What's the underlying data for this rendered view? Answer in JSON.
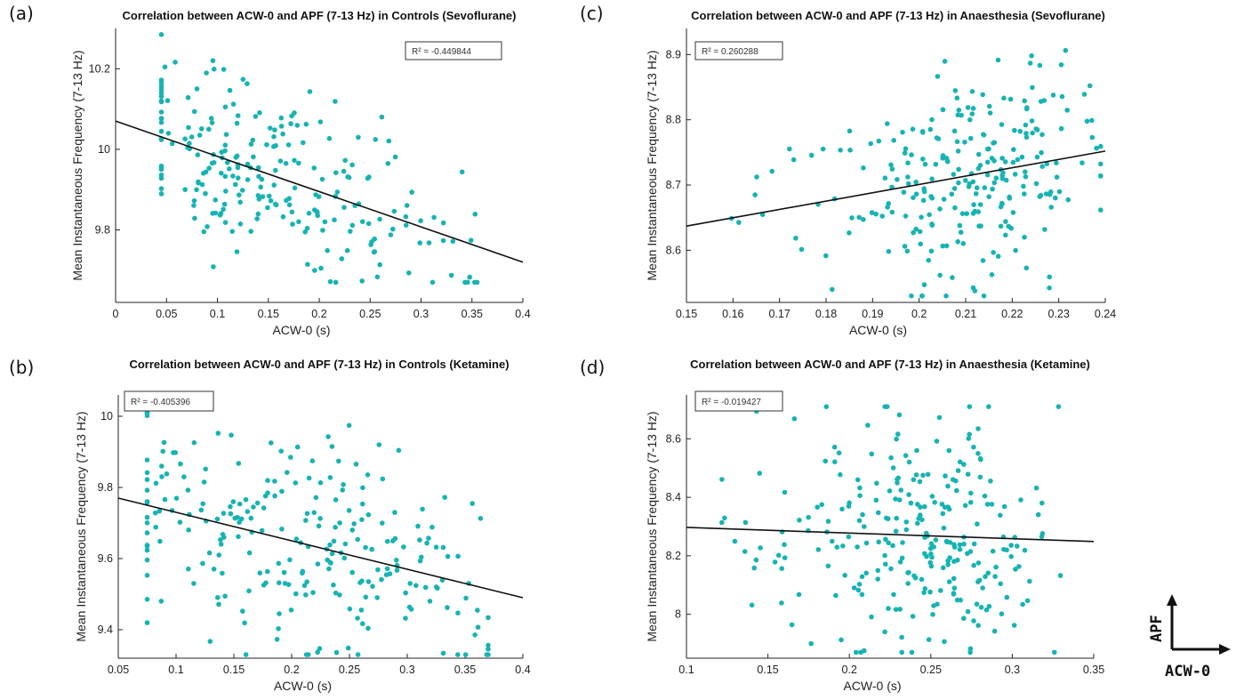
{
  "colors": {
    "points": "#17b3b3",
    "fit": "#111111",
    "axis": "#222222"
  },
  "legend": {
    "y_label": "APF",
    "x_label": "ACW-0"
  },
  "chart_data": [
    {
      "id": "a",
      "type": "scatter",
      "panel_label": "(a)",
      "title": "Correlation between ACW-0 and APF (7-13 Hz) in Controls (Sevoflurane)",
      "xlabel": "ACW-0 (s)",
      "ylabel": "Mean Instantaneous Frequency (7-13 Hz)",
      "xlim": [
        0,
        0.4
      ],
      "ylim": [
        9.62,
        10.3
      ],
      "xticks": [
        0,
        0.05,
        0.1,
        0.15,
        0.2,
        0.25,
        0.3,
        0.35,
        0.4
      ],
      "xtick_labels": [
        "0",
        "0.05",
        "0.1",
        "0.15",
        "0.2",
        "0.25",
        "0.3",
        "0.35",
        "0.4"
      ],
      "yticks": [
        9.8,
        10,
        10.2
      ],
      "ytick_labels": [
        "9.8",
        "10",
        "10.2"
      ],
      "annotation": "R² = -0.449844",
      "annotation_position": "top-right",
      "fit_line": {
        "x": [
          0,
          0.4
        ],
        "y": [
          10.07,
          9.72
        ]
      },
      "point_cloud": {
        "n": 240,
        "seed": 11,
        "x_range": [
          0.045,
          0.355
        ],
        "y_range": [
          9.67,
          10.29
        ],
        "x_center": 0.14,
        "x_spread": 0.08,
        "y_noise": 0.11
      }
    },
    {
      "id": "c",
      "type": "scatter",
      "panel_label": "(c)",
      "title": "Correlation between ACW-0 and APF (7-13 Hz) in Anaesthesia (Sevoflurane)",
      "xlabel": "ACW-0 (s)",
      "ylabel": "Mean Instantaneous Frequency (7-13 Hz)",
      "xlim": [
        0.15,
        0.24
      ],
      "ylim": [
        8.52,
        8.94
      ],
      "xticks": [
        0.15,
        0.16,
        0.17,
        0.18,
        0.19,
        0.2,
        0.21,
        0.22,
        0.23,
        0.24
      ],
      "xtick_labels": [
        "0.15",
        "0.16",
        "0.17",
        "0.18",
        "0.19",
        "0.2",
        "0.21",
        "0.22",
        "0.23",
        "0.24"
      ],
      "yticks": [
        8.6,
        8.7,
        8.8,
        8.9
      ],
      "ytick_labels": [
        "8.6",
        "8.7",
        "8.8",
        "8.9"
      ],
      "annotation": "R² = 0.260288",
      "annotation_position": "top-left",
      "fit_line": {
        "x": [
          0.15,
          0.24
        ],
        "y": [
          8.637,
          8.752
        ]
      },
      "point_cloud": {
        "n": 260,
        "seed": 23,
        "x_range": [
          0.159,
          0.239
        ],
        "y_range": [
          8.53,
          8.93
        ],
        "x_center": 0.212,
        "x_spread": 0.012,
        "y_noise": 0.07
      }
    },
    {
      "id": "b",
      "type": "scatter",
      "panel_label": "(b)",
      "title": "Correlation between ACW-0 and APF (7-13 Hz) in Controls (Ketamine)",
      "xlabel": "ACW-0 (s)",
      "ylabel": "Mean Instantaneous Frequency (7-13 Hz)",
      "xlim": [
        0.05,
        0.4
      ],
      "ylim": [
        9.32,
        10.06
      ],
      "xticks": [
        0.05,
        0.1,
        0.15,
        0.2,
        0.25,
        0.3,
        0.35,
        0.4
      ],
      "xtick_labels": [
        "0.05",
        "0.1",
        "0.15",
        "0.2",
        "0.25",
        "0.3",
        "0.35",
        "0.4"
      ],
      "yticks": [
        9.4,
        9.6,
        9.8,
        10
      ],
      "ytick_labels": [
        "9.4",
        "9.6",
        "9.8",
        "10"
      ],
      "annotation": "R² = -0.405396",
      "annotation_position": "top-left",
      "fit_line": {
        "x": [
          0.05,
          0.4
        ],
        "y": [
          9.77,
          9.49
        ]
      },
      "point_cloud": {
        "n": 250,
        "seed": 37,
        "x_range": [
          0.075,
          0.37
        ],
        "y_range": [
          9.33,
          10.01
        ],
        "x_center": 0.2,
        "x_spread": 0.09,
        "y_noise": 0.16
      }
    },
    {
      "id": "d",
      "type": "scatter",
      "panel_label": "(d)",
      "title": "Correlation between ACW-0 and APF (7-13 Hz) in Anaesthesia (Ketamine)",
      "xlabel": "ACW-0 (s)",
      "ylabel": "Mean Instantaneous Frequency (7-13 Hz)",
      "xlim": [
        0.1,
        0.35
      ],
      "ylim": [
        7.85,
        8.75
      ],
      "xticks": [
        0.1,
        0.15,
        0.2,
        0.25,
        0.3,
        0.35
      ],
      "xtick_labels": [
        "0.1",
        "0.15",
        "0.2",
        "0.25",
        "0.3",
        "0.35"
      ],
      "yticks": [
        8,
        8.2,
        8.4,
        8.6
      ],
      "ytick_labels": [
        "8",
        "8.2",
        "8.4",
        "8.6"
      ],
      "annotation": "R² = -0.019427",
      "annotation_position": "top-left",
      "fit_line": {
        "x": [
          0.1,
          0.35
        ],
        "y": [
          8.297,
          8.249
        ]
      },
      "point_cloud": {
        "n": 270,
        "seed": 53,
        "x_range": [
          0.105,
          0.332
        ],
        "y_range": [
          7.87,
          8.71
        ],
        "x_center": 0.25,
        "x_spread": 0.035,
        "y_noise": 0.2
      }
    }
  ]
}
